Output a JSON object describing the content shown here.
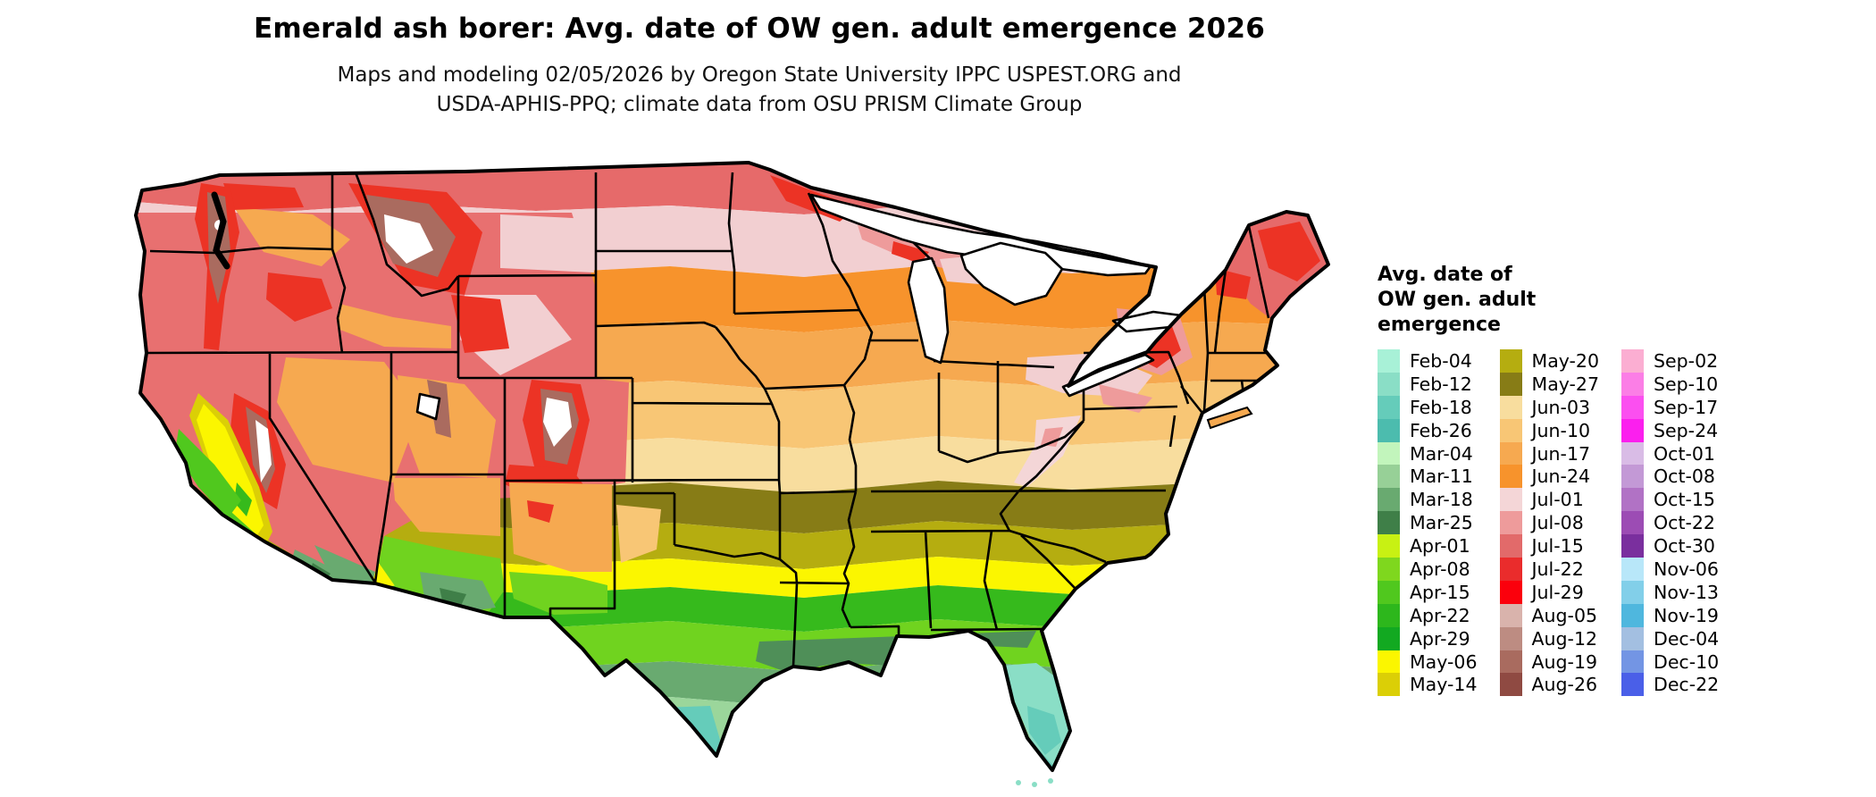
{
  "title": "Emerald ash borer: Avg. date of OW gen. adult emergence 2026",
  "subtitle_line1": "Maps and modeling 02/05/2026 by Oregon State University IPPC USPEST.ORG and",
  "subtitle_line2": "USDA-APHIS-PPQ; climate data from OSU PRISM Climate Group",
  "map": {
    "region": "Contiguous United States",
    "variable": "Avg. date of OW gen. adult emergence",
    "year": "2026"
  },
  "legend": {
    "title_lines": [
      "Avg. date of",
      "OW gen. adult",
      "emergence"
    ],
    "columns": [
      [
        {
          "label": "Feb-04",
          "color": "#a8f1d7"
        },
        {
          "label": "Feb-12",
          "color": "#8adec6"
        },
        {
          "label": "Feb-18",
          "color": "#65ccba"
        },
        {
          "label": "Feb-26",
          "color": "#4cbcae"
        },
        {
          "label": "Mar-04",
          "color": "#c2f5bc"
        },
        {
          "label": "Mar-11",
          "color": "#97d097"
        },
        {
          "label": "Mar-18",
          "color": "#69aa70"
        },
        {
          "label": "Mar-25",
          "color": "#3f7f48"
        },
        {
          "label": "Apr-01",
          "color": "#c8f113"
        },
        {
          "label": "Apr-08",
          "color": "#7fd71e"
        },
        {
          "label": "Apr-15",
          "color": "#50c81e"
        },
        {
          "label": "Apr-22",
          "color": "#2db71c"
        },
        {
          "label": "Apr-29",
          "color": "#12a921"
        },
        {
          "label": "May-06",
          "color": "#fbf600"
        },
        {
          "label": "May-14",
          "color": "#dbcf06"
        }
      ],
      [
        {
          "label": "May-20",
          "color": "#b5ad10"
        },
        {
          "label": "May-27",
          "color": "#877c16"
        },
        {
          "label": "Jun-03",
          "color": "#f8dd9e"
        },
        {
          "label": "Jun-10",
          "color": "#f8c675"
        },
        {
          "label": "Jun-17",
          "color": "#f6a950"
        },
        {
          "label": "Jun-24",
          "color": "#f7932c"
        },
        {
          "label": "Jul-01",
          "color": "#f4d6d7"
        },
        {
          "label": "Jul-08",
          "color": "#ee9b9b"
        },
        {
          "label": "Jul-15",
          "color": "#e26a6a"
        },
        {
          "label": "Jul-22",
          "color": "#ea2c2c"
        },
        {
          "label": "Jul-29",
          "color": "#fb000c"
        },
        {
          "label": "Aug-05",
          "color": "#d9b3ac"
        },
        {
          "label": "Aug-12",
          "color": "#bd8c82"
        },
        {
          "label": "Aug-19",
          "color": "#a96b5f"
        },
        {
          "label": "Aug-26",
          "color": "#8f4a42"
        }
      ],
      [
        {
          "label": "Sep-02",
          "color": "#fbaed2"
        },
        {
          "label": "Sep-10",
          "color": "#fb7ee6"
        },
        {
          "label": "Sep-17",
          "color": "#fb4ff0"
        },
        {
          "label": "Sep-24",
          "color": "#fb1fee"
        },
        {
          "label": "Oct-01",
          "color": "#d9bce6"
        },
        {
          "label": "Oct-08",
          "color": "#c399d6"
        },
        {
          "label": "Oct-15",
          "color": "#b172c5"
        },
        {
          "label": "Oct-22",
          "color": "#9c4cb4"
        },
        {
          "label": "Oct-30",
          "color": "#7a2f9e"
        },
        {
          "label": "Nov-06",
          "color": "#b8e7f9"
        },
        {
          "label": "Nov-13",
          "color": "#82cfe9"
        },
        {
          "label": "Nov-19",
          "color": "#4fb7de"
        },
        {
          "label": "Dec-04",
          "color": "#a3bfe1"
        },
        {
          "label": "Dec-10",
          "color": "#7395e4"
        },
        {
          "label": "Dec-22",
          "color": "#4a5fe8"
        }
      ]
    ]
  },
  "chart_data": {
    "type": "heatmap",
    "title": "Emerald ash borer: Avg. date of OW gen. adult emergence 2026",
    "categories": [
      "Feb-04",
      "Feb-12",
      "Feb-18",
      "Feb-26",
      "Mar-04",
      "Mar-11",
      "Mar-18",
      "Mar-25",
      "Apr-01",
      "Apr-08",
      "Apr-15",
      "Apr-22",
      "Apr-29",
      "May-06",
      "May-14",
      "May-20",
      "May-27",
      "Jun-03",
      "Jun-10",
      "Jun-17",
      "Jun-24",
      "Jul-01",
      "Jul-08",
      "Jul-15",
      "Jul-22",
      "Jul-29",
      "Aug-05",
      "Aug-12",
      "Aug-19",
      "Aug-26",
      "Sep-02",
      "Sep-10",
      "Sep-17",
      "Sep-24",
      "Oct-01",
      "Oct-08",
      "Oct-15",
      "Oct-22",
      "Oct-30",
      "Nov-06",
      "Nov-13",
      "Nov-19",
      "Dec-04",
      "Dec-10",
      "Dec-22"
    ],
    "legend_position": "right"
  }
}
